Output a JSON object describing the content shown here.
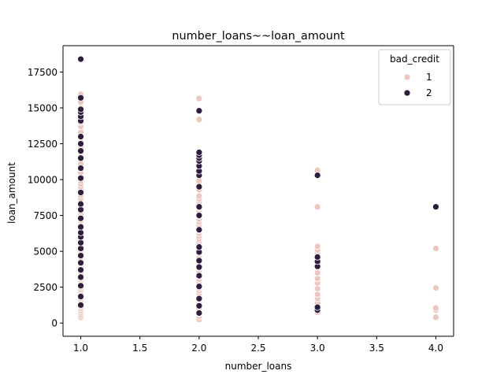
{
  "chart_data": {
    "type": "scatter",
    "title": "number_loans~~loan_amount",
    "xlabel": "number_loans",
    "ylabel": "loan_amount",
    "xlim": [
      0.85,
      4.15
    ],
    "ylim": [
      -922.5,
      19337.5
    ],
    "xticks": [
      1.0,
      1.5,
      2.0,
      2.5,
      3.0,
      3.5,
      4.0
    ],
    "xtick_labels": [
      "1.0",
      "1.5",
      "2.0",
      "2.5",
      "3.0",
      "3.5",
      "4.0"
    ],
    "yticks": [
      0,
      2500,
      5000,
      7500,
      10000,
      12500,
      15000,
      17500
    ],
    "ytick_labels": [
      "0",
      "2500",
      "5000",
      "7500",
      "10000",
      "12500",
      "15000",
      "17500"
    ],
    "grid": false,
    "legend": {
      "title": "bad_credit",
      "placement": "upper right"
    },
    "series": [
      {
        "name": "1",
        "color": "#ebc7c0",
        "points": [
          [
            1,
            400
          ],
          [
            1,
            550
          ],
          [
            1,
            700
          ],
          [
            1,
            850
          ],
          [
            1,
            1000
          ],
          [
            1,
            1150
          ],
          [
            1,
            1300
          ],
          [
            1,
            1450
          ],
          [
            1,
            1600
          ],
          [
            1,
            1750
          ],
          [
            1,
            1900
          ],
          [
            1,
            2050
          ],
          [
            1,
            2200
          ],
          [
            1,
            2350
          ],
          [
            1,
            2500
          ],
          [
            1,
            2650
          ],
          [
            1,
            2800
          ],
          [
            1,
            2950
          ],
          [
            1,
            3100
          ],
          [
            1,
            3250
          ],
          [
            1,
            3400
          ],
          [
            1,
            3550
          ],
          [
            1,
            3700
          ],
          [
            1,
            3850
          ],
          [
            1,
            4000
          ],
          [
            1,
            4150
          ],
          [
            1,
            4300
          ],
          [
            1,
            4450
          ],
          [
            1,
            4600
          ],
          [
            1,
            4750
          ],
          [
            1,
            4900
          ],
          [
            1,
            5050
          ],
          [
            1,
            5200
          ],
          [
            1,
            5350
          ],
          [
            1,
            5500
          ],
          [
            1,
            5650
          ],
          [
            1,
            5800
          ],
          [
            1,
            5950
          ],
          [
            1,
            6100
          ],
          [
            1,
            6250
          ],
          [
            1,
            6400
          ],
          [
            1,
            6550
          ],
          [
            1,
            6700
          ],
          [
            1,
            6850
          ],
          [
            1,
            7000
          ],
          [
            1,
            7150
          ],
          [
            1,
            7300
          ],
          [
            1,
            7450
          ],
          [
            1,
            7600
          ],
          [
            1,
            7750
          ],
          [
            1,
            7900
          ],
          [
            1,
            8050
          ],
          [
            1,
            8200
          ],
          [
            1,
            8350
          ],
          [
            1,
            8500
          ],
          [
            1,
            8700
          ],
          [
            1,
            8900
          ],
          [
            1,
            9100
          ],
          [
            1,
            9300
          ],
          [
            1,
            9500
          ],
          [
            1,
            9700
          ],
          [
            1,
            9900
          ],
          [
            1,
            10200
          ],
          [
            1,
            10500
          ],
          [
            1,
            10800
          ],
          [
            1,
            11100
          ],
          [
            1,
            11500
          ],
          [
            1,
            11900
          ],
          [
            1,
            12300
          ],
          [
            1,
            12600
          ],
          [
            1,
            13000
          ],
          [
            1,
            13300
          ],
          [
            1,
            13700
          ],
          [
            1,
            14000
          ],
          [
            1,
            14300
          ],
          [
            1,
            14600
          ],
          [
            1,
            15000
          ],
          [
            1,
            15400
          ],
          [
            1,
            15800
          ],
          [
            1,
            15950
          ],
          [
            2,
            250
          ],
          [
            2,
            450
          ],
          [
            2,
            650
          ],
          [
            2,
            850
          ],
          [
            2,
            1050
          ],
          [
            2,
            1250
          ],
          [
            2,
            1450
          ],
          [
            2,
            1650
          ],
          [
            2,
            1850
          ],
          [
            2,
            2050
          ],
          [
            2,
            2250
          ],
          [
            2,
            2450
          ],
          [
            2,
            2650
          ],
          [
            2,
            2850
          ],
          [
            2,
            3050
          ],
          [
            2,
            3250
          ],
          [
            2,
            3450
          ],
          [
            2,
            3650
          ],
          [
            2,
            3850
          ],
          [
            2,
            4050
          ],
          [
            2,
            4250
          ],
          [
            2,
            4450
          ],
          [
            2,
            4650
          ],
          [
            2,
            4850
          ],
          [
            2,
            5050
          ],
          [
            2,
            5250
          ],
          [
            2,
            5450
          ],
          [
            2,
            5650
          ],
          [
            2,
            5850
          ],
          [
            2,
            6050
          ],
          [
            2,
            6250
          ],
          [
            2,
            6450
          ],
          [
            2,
            6650
          ],
          [
            2,
            6850
          ],
          [
            2,
            7050
          ],
          [
            2,
            7250
          ],
          [
            2,
            7450
          ],
          [
            2,
            7650
          ],
          [
            2,
            7850
          ],
          [
            2,
            8050
          ],
          [
            2,
            8250
          ],
          [
            2,
            8450
          ],
          [
            2,
            8650
          ],
          [
            2,
            8850
          ],
          [
            2,
            9300
          ],
          [
            2,
            9600
          ],
          [
            2,
            9900
          ],
          [
            2,
            10400
          ],
          [
            2,
            10800
          ],
          [
            2,
            11300
          ],
          [
            2,
            11700
          ],
          [
            2,
            14200
          ],
          [
            2,
            15650
          ],
          [
            3,
            750
          ],
          [
            3,
            950
          ],
          [
            3,
            1150
          ],
          [
            3,
            1400
          ],
          [
            3,
            1700
          ],
          [
            3,
            2000
          ],
          [
            3,
            2400
          ],
          [
            3,
            2800
          ],
          [
            3,
            3100
          ],
          [
            3,
            3500
          ],
          [
            3,
            4400
          ],
          [
            3,
            4900
          ],
          [
            3,
            5100
          ],
          [
            3,
            5350
          ],
          [
            3,
            8100
          ],
          [
            3,
            10400
          ],
          [
            3,
            10650
          ],
          [
            4,
            400
          ],
          [
            4,
            900
          ],
          [
            4,
            1050
          ],
          [
            4,
            2450
          ],
          [
            4,
            5200
          ]
        ]
      },
      {
        "name": "2",
        "color": "#2d1e3e",
        "points": [
          [
            1,
            1250
          ],
          [
            1,
            1850
          ],
          [
            1,
            2600
          ],
          [
            1,
            3200
          ],
          [
            1,
            3700
          ],
          [
            1,
            4200
          ],
          [
            1,
            4700
          ],
          [
            1,
            5200
          ],
          [
            1,
            5600
          ],
          [
            1,
            6000
          ],
          [
            1,
            6300
          ],
          [
            1,
            6700
          ],
          [
            1,
            7300
          ],
          [
            1,
            7900
          ],
          [
            1,
            8300
          ],
          [
            1,
            9100
          ],
          [
            1,
            10100
          ],
          [
            1,
            10800
          ],
          [
            1,
            11500
          ],
          [
            1,
            12000
          ],
          [
            1,
            12500
          ],
          [
            1,
            13000
          ],
          [
            1,
            14100
          ],
          [
            1,
            14400
          ],
          [
            1,
            14700
          ],
          [
            1,
            14900
          ],
          [
            1,
            15700
          ],
          [
            1,
            18400
          ],
          [
            2,
            700
          ],
          [
            2,
            1200
          ],
          [
            2,
            1700
          ],
          [
            2,
            2550
          ],
          [
            2,
            3300
          ],
          [
            2,
            3900
          ],
          [
            2,
            4350
          ],
          [
            2,
            4950
          ],
          [
            2,
            5300
          ],
          [
            2,
            6500
          ],
          [
            2,
            7500
          ],
          [
            2,
            8100
          ],
          [
            2,
            9500
          ],
          [
            2,
            10300
          ],
          [
            2,
            10600
          ],
          [
            2,
            10950
          ],
          [
            2,
            11300
          ],
          [
            2,
            11500
          ],
          [
            2,
            11700
          ],
          [
            2,
            11900
          ],
          [
            2,
            14800
          ],
          [
            3,
            900
          ],
          [
            3,
            1100
          ],
          [
            3,
            3950
          ],
          [
            3,
            4300
          ],
          [
            3,
            4600
          ],
          [
            3,
            10300
          ],
          [
            4,
            8100
          ]
        ]
      }
    ]
  }
}
